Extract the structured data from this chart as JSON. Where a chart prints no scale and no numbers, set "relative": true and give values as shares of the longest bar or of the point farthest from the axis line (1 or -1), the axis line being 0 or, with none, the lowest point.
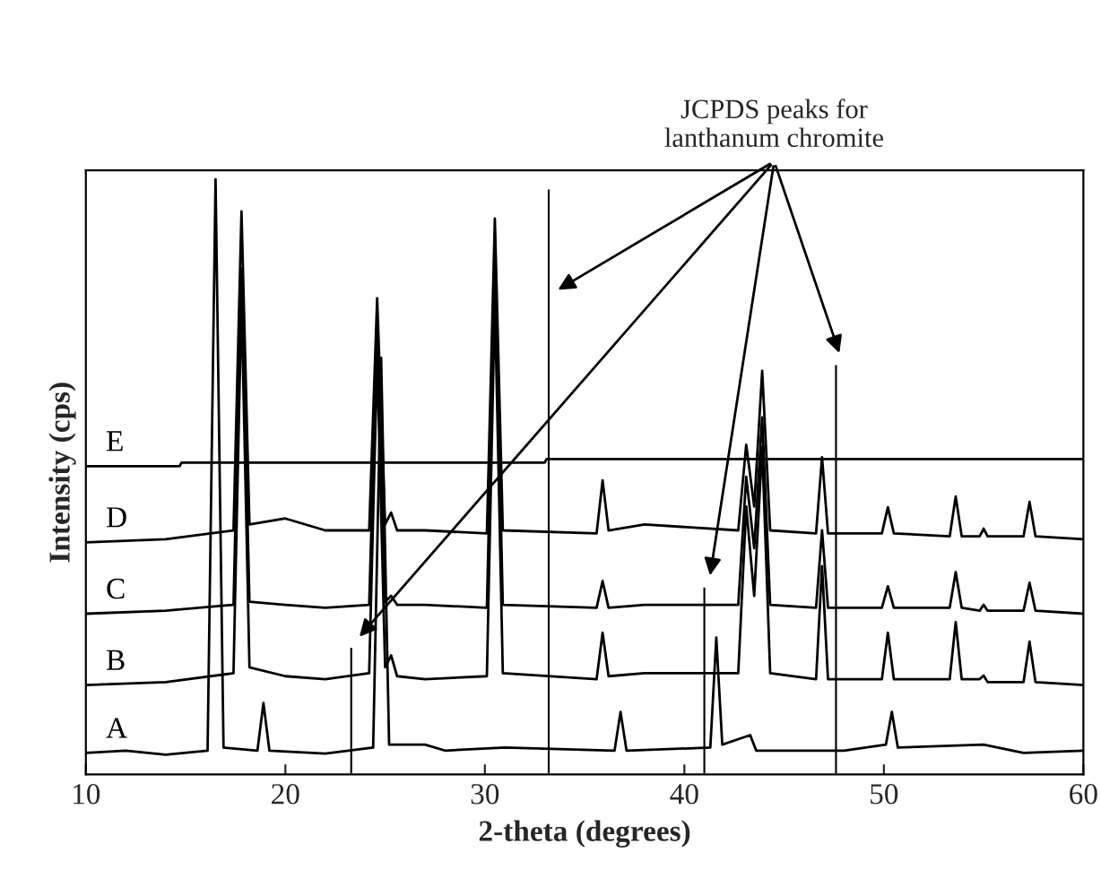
{
  "chart_data": {
    "type": "line",
    "relative": true,
    "xlabel": "2-theta (degrees)",
    "ylabel": "Intensity (cps)",
    "xlim": [
      10,
      60
    ],
    "xticks": [
      10,
      20,
      30,
      40,
      50,
      60
    ],
    "tick_labels": "x",
    "grid": false,
    "legend": false,
    "line_style": "solid",
    "marker": "none",
    "annotations": [
      "JCPDS peaks for lanthanum chromite"
    ],
    "series": [
      {
        "name": "A",
        "color": "#000000",
        "x": [
          10,
          12,
          14,
          16.1,
          16.5,
          16.9,
          18.6,
          18.9,
          19.2,
          22,
          24.4,
          24.8,
          25.2,
          27,
          28,
          31,
          36.5,
          36.8,
          37.1,
          41.3,
          41.6,
          41.9,
          43.3,
          43.6,
          48,
          50.1,
          50.4,
          50.7,
          55,
          57,
          60
        ],
        "values": [
          0.036,
          0.04,
          0.033,
          0.04,
          1.0,
          0.045,
          0.04,
          0.12,
          0.04,
          0.035,
          0.045,
          0.7,
          0.05,
          0.05,
          0.04,
          0.045,
          0.04,
          0.105,
          0.04,
          0.045,
          0.23,
          0.05,
          0.066,
          0.04,
          0.04,
          0.05,
          0.105,
          0.045,
          0.05,
          0.036,
          0.04
        ]
      },
      {
        "name": "B",
        "color": "#000000",
        "x": [
          10,
          14,
          17.4,
          17.8,
          18.2,
          20,
          22,
          24.2,
          24.6,
          25,
          25.3,
          25.6,
          27,
          30.1,
          30.5,
          30.9,
          35.6,
          35.9,
          36.2,
          38,
          42.7,
          43.1,
          43.5,
          43.9,
          44.3,
          46.6,
          46.9,
          47.2,
          49.9,
          50.2,
          50.5,
          53.3,
          53.6,
          53.9,
          54.8,
          55.0,
          55.2,
          57.0,
          57.3,
          57.6,
          60
        ],
        "values": [
          0.15,
          0.155,
          0.17,
          0.8,
          0.18,
          0.165,
          0.16,
          0.17,
          0.7,
          0.18,
          0.2,
          0.165,
          0.16,
          0.165,
          0.8,
          0.17,
          0.16,
          0.238,
          0.165,
          0.17,
          0.17,
          0.45,
          0.3,
          0.55,
          0.17,
          0.16,
          0.35,
          0.16,
          0.16,
          0.238,
          0.16,
          0.16,
          0.256,
          0.16,
          0.16,
          0.166,
          0.155,
          0.155,
          0.223,
          0.155,
          0.15
        ]
      },
      {
        "name": "C",
        "color": "#000000",
        "x": [
          10,
          14,
          17.4,
          17.8,
          18.2,
          20,
          22,
          24.2,
          24.6,
          25,
          25.3,
          25.6,
          27,
          30.1,
          30.5,
          30.9,
          35.6,
          35.9,
          36.2,
          38,
          42.7,
          43.1,
          43.5,
          43.9,
          44.3,
          46.6,
          46.9,
          47.2,
          49.9,
          50.2,
          50.5,
          53.3,
          53.6,
          53.9,
          54.8,
          55.0,
          55.2,
          57.0,
          57.3,
          57.6,
          60
        ],
        "values": [
          0.27,
          0.275,
          0.285,
          0.85,
          0.29,
          0.285,
          0.28,
          0.285,
          0.75,
          0.29,
          0.3,
          0.285,
          0.285,
          0.28,
          0.85,
          0.285,
          0.28,
          0.325,
          0.28,
          0.285,
          0.285,
          0.5,
          0.38,
          0.6,
          0.285,
          0.28,
          0.41,
          0.28,
          0.28,
          0.316,
          0.28,
          0.28,
          0.34,
          0.28,
          0.275,
          0.285,
          0.275,
          0.275,
          0.322,
          0.275,
          0.27
        ]
      },
      {
        "name": "D",
        "color": "#000000",
        "x": [
          10,
          14,
          17.4,
          17.8,
          18.2,
          20,
          22,
          24.2,
          24.6,
          25,
          25.3,
          25.6,
          27,
          30.1,
          30.5,
          30.9,
          35.6,
          35.9,
          36.2,
          38,
          42.7,
          43.1,
          43.5,
          43.9,
          44.3,
          46.6,
          46.9,
          47.2,
          49.9,
          50.2,
          50.5,
          53.3,
          53.6,
          53.9,
          54.8,
          55.0,
          55.2,
          57.0,
          57.3,
          57.6,
          60
        ],
        "values": [
          0.39,
          0.395,
          0.41,
          0.946,
          0.42,
          0.43,
          0.41,
          0.41,
          0.8,
          0.42,
          0.44,
          0.41,
          0.41,
          0.405,
          0.934,
          0.41,
          0.405,
          0.494,
          0.41,
          0.42,
          0.41,
          0.554,
          0.45,
          0.678,
          0.41,
          0.405,
          0.533,
          0.405,
          0.405,
          0.449,
          0.405,
          0.4,
          0.467,
          0.4,
          0.4,
          0.413,
          0.4,
          0.4,
          0.458,
          0.4,
          0.395
        ]
      },
      {
        "name": "E",
        "color": "#000000",
        "x": [
          10,
          14.7,
          14.8,
          33,
          33.1,
          60
        ],
        "values": [
          0.518,
          0.518,
          0.524,
          0.524,
          0.53,
          0.53
        ]
      },
      {
        "type": "bar",
        "color": "#000000",
        "x": [
          23.3,
          33.2,
          41.0,
          47.6
        ],
        "values": [
          0.215,
          0.985,
          0.316,
          0.69
        ]
      }
    ]
  }
}
